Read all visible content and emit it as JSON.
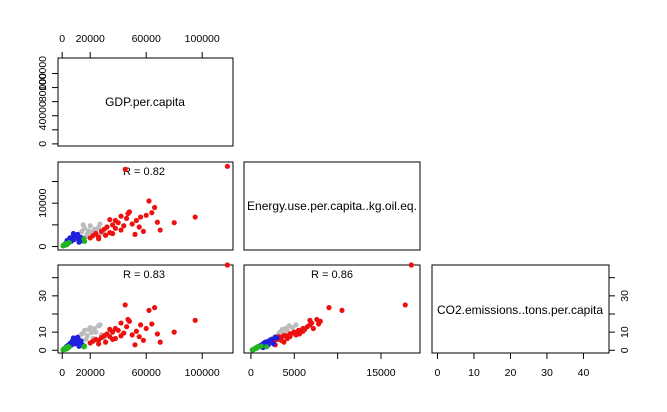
{
  "chart_data": {
    "type": "scatter",
    "layout": "pairs-matrix",
    "variables": [
      "GDP.per.capita",
      "Energy.use.per.capita..kg.oil.eq.",
      "CO2.emissions..tons.per.capita"
    ],
    "axes": [
      {
        "ticks": [
          0,
          20000,
          60000,
          100000
        ],
        "tick_labels": [
          "0",
          "20000",
          "60000",
          "100000"
        ],
        "range": [
          -3000,
          122000
        ]
      },
      {
        "ticks": [
          0,
          10000
        ],
        "tick_labels": [
          "0",
          "10000"
        ],
        "range": [
          -800,
          19500
        ]
      },
      {
        "ticks": [
          0,
          10,
          20,
          30,
          40
        ],
        "tick_labels": [
          "0",
          "10",
          "20",
          "30",
          "40"
        ],
        "range": [
          -1.5,
          47
        ]
      }
    ],
    "side_axis_ticks": {
      "gdp": [
        "0",
        "40000",
        "80000",
        "100000"
      ],
      "energy": [
        "0",
        "5000",
        "15000"
      ],
      "co2": [
        "0",
        "10",
        "30"
      ]
    },
    "correlations": [
      {
        "row": 1,
        "col": 0,
        "label": "R = 0.82"
      },
      {
        "row": 2,
        "col": 0,
        "label": "R = 0.83"
      },
      {
        "row": 2,
        "col": 1,
        "label": "R = 0.86"
      }
    ],
    "group_colors": {
      "green": "#22b422",
      "blue": "#1f1fdd",
      "grey": "#bcbcbc",
      "red": "#ee0f0f"
    },
    "points": [
      {
        "g": "green",
        "gdp": 600,
        "e": 200,
        "c": 0.3
      },
      {
        "g": "green",
        "gdp": 900,
        "e": 300,
        "c": 0.5
      },
      {
        "g": "green",
        "gdp": 1200,
        "e": 250,
        "c": 0.4
      },
      {
        "g": "green",
        "gdp": 1500,
        "e": 450,
        "c": 0.9
      },
      {
        "g": "green",
        "gdp": 2000,
        "e": 600,
        "c": 1.2
      },
      {
        "g": "green",
        "gdp": 2500,
        "e": 350,
        "c": 0.6
      },
      {
        "g": "green",
        "gdp": 3000,
        "e": 700,
        "c": 1.6
      },
      {
        "g": "green",
        "gdp": 3500,
        "e": 500,
        "c": 1.0
      },
      {
        "g": "green",
        "gdp": 4200,
        "e": 800,
        "c": 2.0
      },
      {
        "g": "green",
        "gdp": 5000,
        "e": 900,
        "c": 1.8
      },
      {
        "g": "green",
        "gdp": 1800,
        "e": 400,
        "c": 0.7
      },
      {
        "g": "green",
        "gdp": 2800,
        "e": 550,
        "c": 1.3
      },
      {
        "g": "green",
        "gdp": 3800,
        "e": 650,
        "c": 1.1
      },
      {
        "g": "green",
        "gdp": 16000,
        "e": 1200,
        "c": 2.3
      },
      {
        "g": "green",
        "gdp": 15500,
        "e": 1800,
        "c": 1.9
      },
      {
        "g": "green",
        "gdp": 700,
        "e": 150,
        "c": 0.2
      },
      {
        "g": "blue",
        "gdp": 3000,
        "e": 900,
        "c": 2.0
      },
      {
        "g": "blue",
        "gdp": 4000,
        "e": 1100,
        "c": 2.6
      },
      {
        "g": "blue",
        "gdp": 5000,
        "e": 1300,
        "c": 3.2
      },
      {
        "g": "blue",
        "gdp": 6000,
        "e": 1500,
        "c": 4.0
      },
      {
        "g": "blue",
        "gdp": 7000,
        "e": 1700,
        "c": 4.6
      },
      {
        "g": "blue",
        "gdp": 7500,
        "e": 2200,
        "c": 5.5
      },
      {
        "g": "blue",
        "gdp": 8500,
        "e": 1600,
        "c": 3.8
      },
      {
        "g": "blue",
        "gdp": 9500,
        "e": 2000,
        "c": 5.0
      },
      {
        "g": "blue",
        "gdp": 10500,
        "e": 2400,
        "c": 6.0
      },
      {
        "g": "blue",
        "gdp": 11500,
        "e": 1900,
        "c": 4.4
      },
      {
        "g": "blue",
        "gdp": 12500,
        "e": 1500,
        "c": 3.4
      },
      {
        "g": "blue",
        "gdp": 13500,
        "e": 2100,
        "c": 5.2
      },
      {
        "g": "blue",
        "gdp": 14500,
        "e": 1300,
        "c": 3.0
      },
      {
        "g": "blue",
        "gdp": 8000,
        "e": 3000,
        "c": 6.8
      },
      {
        "g": "blue",
        "gdp": 6500,
        "e": 1200,
        "c": 2.8
      },
      {
        "g": "blue",
        "gdp": 9000,
        "e": 2600,
        "c": 3.6
      },
      {
        "g": "blue",
        "gdp": 11000,
        "e": 2800,
        "c": 7.2
      },
      {
        "g": "blue",
        "gdp": 5500,
        "e": 2000,
        "c": 3.0
      },
      {
        "g": "blue",
        "gdp": 3500,
        "e": 1400,
        "c": 1.5
      },
      {
        "g": "blue",
        "gdp": 12000,
        "e": 1000,
        "c": 2.2
      },
      {
        "g": "grey",
        "gdp": 12000,
        "e": 2800,
        "c": 7.5
      },
      {
        "g": "grey",
        "gdp": 14000,
        "e": 3500,
        "c": 9.0
      },
      {
        "g": "grey",
        "gdp": 16000,
        "e": 4200,
        "c": 11.0
      },
      {
        "g": "grey",
        "gdp": 18000,
        "e": 3000,
        "c": 8.0
      },
      {
        "g": "grey",
        "gdp": 20000,
        "e": 4800,
        "c": 12.5
      },
      {
        "g": "grey",
        "gdp": 22000,
        "e": 2500,
        "c": 6.5
      },
      {
        "g": "grey",
        "gdp": 24000,
        "e": 3800,
        "c": 10.0
      },
      {
        "g": "grey",
        "gdp": 26000,
        "e": 4400,
        "c": 13.5
      },
      {
        "g": "grey",
        "gdp": 28000,
        "e": 3200,
        "c": 8.5
      },
      {
        "g": "grey",
        "gdp": 30000,
        "e": 2800,
        "c": 7.0
      },
      {
        "g": "grey",
        "gdp": 15000,
        "e": 5000,
        "c": 9.5
      },
      {
        "g": "grey",
        "gdp": 19000,
        "e": 3600,
        "c": 11.5
      },
      {
        "g": "grey",
        "gdp": 23000,
        "e": 4000,
        "c": 12.0
      },
      {
        "g": "grey",
        "gdp": 27000,
        "e": 5200,
        "c": 14.0
      },
      {
        "g": "grey",
        "gdp": 17000,
        "e": 2300,
        "c": 6.0
      },
      {
        "g": "grey",
        "gdp": 21000,
        "e": 3300,
        "c": 9.8
      },
      {
        "g": "red",
        "gdp": 20000,
        "e": 2000,
        "c": 4.0
      },
      {
        "g": "red",
        "gdp": 22000,
        "e": 2500,
        "c": 5.0
      },
      {
        "g": "red",
        "gdp": 24000,
        "e": 3000,
        "c": 6.0
      },
      {
        "g": "red",
        "gdp": 26000,
        "e": 2200,
        "c": 5.5
      },
      {
        "g": "red",
        "gdp": 28000,
        "e": 3500,
        "c": 7.0
      },
      {
        "g": "red",
        "gdp": 30000,
        "e": 4000,
        "c": 8.0
      },
      {
        "g": "red",
        "gdp": 32000,
        "e": 4500,
        "c": 9.0
      },
      {
        "g": "red",
        "gdp": 34000,
        "e": 3200,
        "c": 7.5
      },
      {
        "g": "red",
        "gdp": 36000,
        "e": 5000,
        "c": 10.0
      },
      {
        "g": "red",
        "gdp": 38000,
        "e": 6000,
        "c": 12.0
      },
      {
        "g": "red",
        "gdp": 40000,
        "e": 5500,
        "c": 11.0
      },
      {
        "g": "red",
        "gdp": 42000,
        "e": 7000,
        "c": 15.0
      },
      {
        "g": "red",
        "gdp": 44000,
        "e": 4800,
        "c": 9.5
      },
      {
        "g": "red",
        "gdp": 46000,
        "e": 6500,
        "c": 13.0
      },
      {
        "g": "red",
        "gdp": 48000,
        "e": 8000,
        "c": 16.0
      },
      {
        "g": "red",
        "gdp": 50000,
        "e": 5200,
        "c": 8.5
      },
      {
        "g": "red",
        "gdp": 38000,
        "e": 4200,
        "c": 6.5
      },
      {
        "g": "red",
        "gdp": 34000,
        "e": 6200,
        "c": 11.5
      },
      {
        "g": "red",
        "gdp": 42000,
        "e": 3800,
        "c": 8.0
      },
      {
        "g": "red",
        "gdp": 45000,
        "e": 17800,
        "c": 25.0
      },
      {
        "g": "red",
        "gdp": 52000,
        "e": 2800,
        "c": 3.0
      },
      {
        "g": "red",
        "gdp": 55000,
        "e": 4500,
        "c": 7.5
      },
      {
        "g": "red",
        "gdp": 56000,
        "e": 6800,
        "c": 14.0
      },
      {
        "g": "red",
        "gdp": 58000,
        "e": 3500,
        "c": 5.5
      },
      {
        "g": "red",
        "gdp": 60000,
        "e": 7200,
        "c": 12.0
      },
      {
        "g": "red",
        "gdp": 62000,
        "e": 10500,
        "c": 22.0
      },
      {
        "g": "red",
        "gdp": 64000,
        "e": 7800,
        "c": 14.5
      },
      {
        "g": "red",
        "gdp": 66000,
        "e": 9000,
        "c": 23.5
      },
      {
        "g": "red",
        "gdp": 68000,
        "e": 5600,
        "c": 9.0
      },
      {
        "g": "red",
        "gdp": 70000,
        "e": 3800,
        "c": 4.5
      },
      {
        "g": "red",
        "gdp": 80000,
        "e": 5500,
        "c": 10.0
      },
      {
        "g": "red",
        "gdp": 95000,
        "e": 6800,
        "c": 16.5
      },
      {
        "g": "red",
        "gdp": 118000,
        "e": 18500,
        "c": 47.0
      },
      {
        "g": "red",
        "gdp": 26000,
        "e": 1800,
        "c": 3.5
      },
      {
        "g": "red",
        "gdp": 31000,
        "e": 2600,
        "c": 4.5
      },
      {
        "g": "red",
        "gdp": 36000,
        "e": 3000,
        "c": 6.0
      },
      {
        "g": "red",
        "gdp": 47000,
        "e": 7600,
        "c": 17.0
      },
      {
        "g": "red",
        "gdp": 53000,
        "e": 6000,
        "c": 10.5
      }
    ]
  }
}
